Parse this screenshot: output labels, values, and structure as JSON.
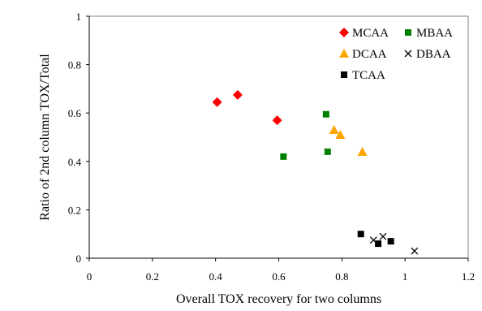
{
  "chart_data": {
    "type": "scatter",
    "xlabel": "Overall TOX recovery for two columns",
    "ylabel": "Ratio of 2nd column TOX/Total",
    "xlim": [
      0,
      1.2
    ],
    "ylim": [
      0,
      1
    ],
    "x_ticks": [
      "0",
      "0.2",
      "0.4",
      "0.6",
      "0.8",
      "1",
      "1.2"
    ],
    "y_ticks": [
      "0",
      "0.2",
      "0.4",
      "0.6",
      "0.8",
      "1"
    ],
    "grid": false,
    "legend_position": "top-right",
    "series": [
      {
        "name": "MCAA",
        "marker": "diamond",
        "color": "#ff0000",
        "points": [
          [
            0.405,
            0.645
          ],
          [
            0.47,
            0.675
          ],
          [
            0.595,
            0.57
          ]
        ]
      },
      {
        "name": "MBAA",
        "marker": "square",
        "color": "#008000",
        "points": [
          [
            0.75,
            0.595
          ],
          [
            0.615,
            0.42
          ],
          [
            0.755,
            0.44
          ]
        ]
      },
      {
        "name": "DCAA",
        "marker": "triangle",
        "color": "#ffa500",
        "points": [
          [
            0.775,
            0.53
          ],
          [
            0.795,
            0.51
          ],
          [
            0.865,
            0.44
          ]
        ]
      },
      {
        "name": "DBAA",
        "marker": "x",
        "color": "#000000",
        "points": [
          [
            0.9,
            0.075
          ],
          [
            0.93,
            0.09
          ],
          [
            1.03,
            0.03
          ]
        ]
      },
      {
        "name": "TCAA",
        "marker": "square",
        "color": "#000000",
        "points": [
          [
            0.86,
            0.1
          ],
          [
            0.915,
            0.06
          ],
          [
            0.955,
            0.07
          ]
        ]
      }
    ]
  }
}
